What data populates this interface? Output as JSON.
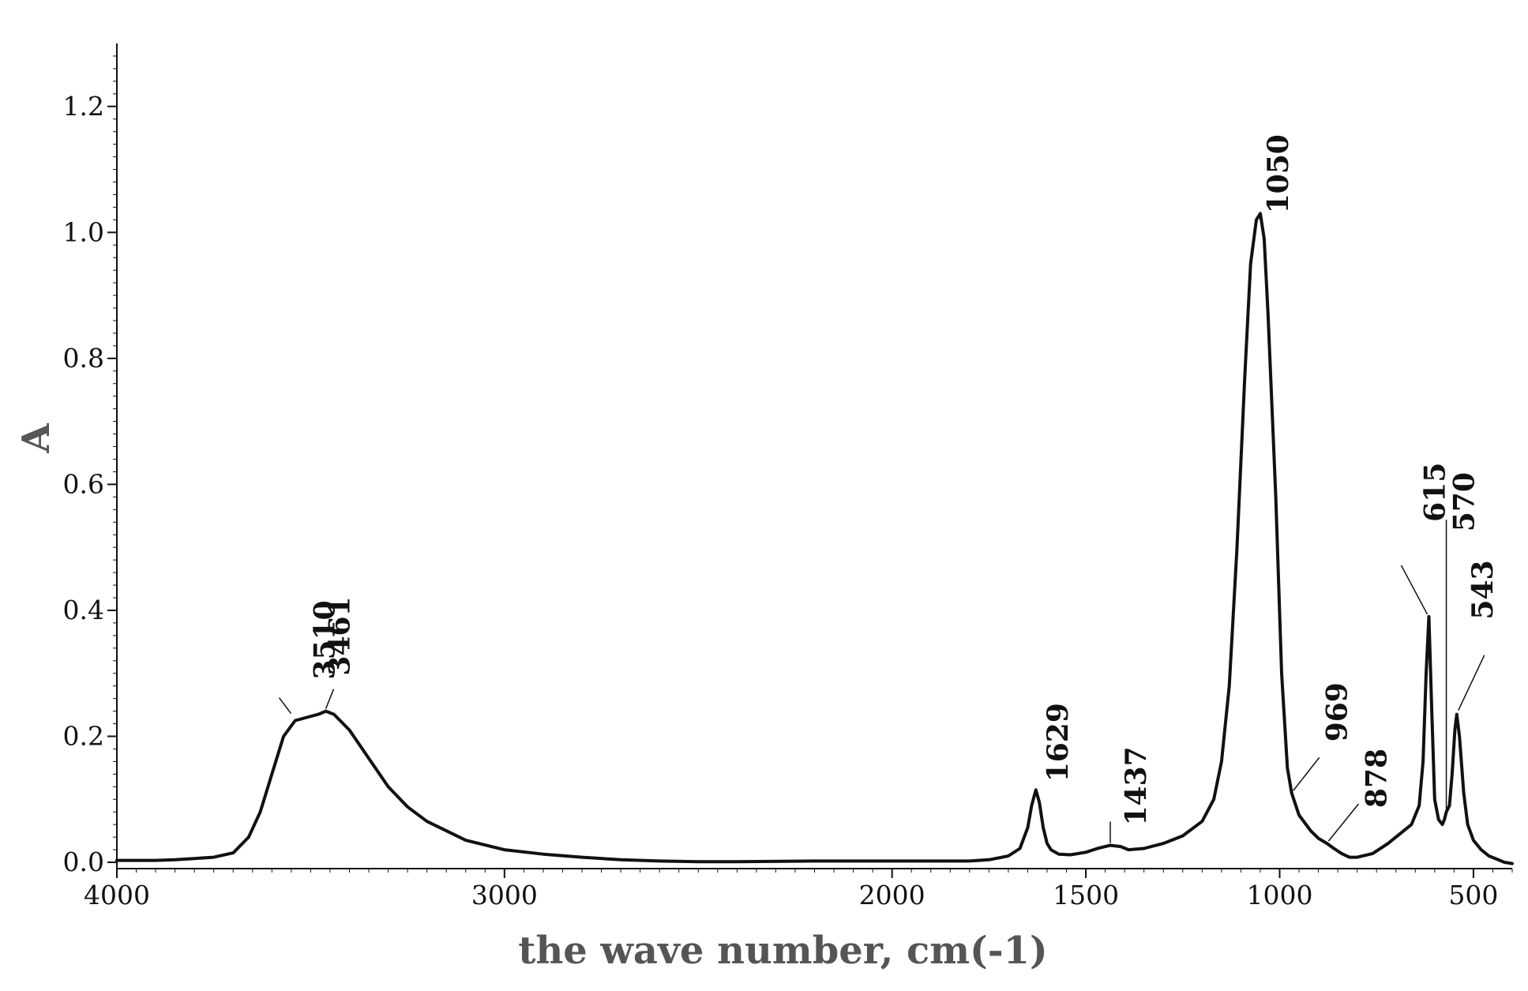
{
  "chart_data": {
    "type": "line",
    "title": "",
    "xlabel": "the wave number, cm(-1)",
    "ylabel": "A",
    "xlim": [
      4000,
      400
    ],
    "ylim": [
      -0.01,
      1.3
    ],
    "x_reversed": true,
    "grid": false,
    "legend": "none",
    "x_ticks": [
      {
        "value": 4000,
        "label": "4000"
      },
      {
        "value": 3000,
        "label": "3000"
      },
      {
        "value": 2000,
        "label": "2000"
      },
      {
        "value": 1500,
        "label": "1500"
      },
      {
        "value": 1000,
        "label": "1000"
      },
      {
        "value": 500,
        "label": "500"
      }
    ],
    "y_ticks": [
      {
        "value": 0.0,
        "label": "0.0"
      },
      {
        "value": 0.2,
        "label": "0.2"
      },
      {
        "value": 0.4,
        "label": "0.4"
      },
      {
        "value": 0.6,
        "label": "0.6"
      },
      {
        "value": 0.8,
        "label": "0.8"
      },
      {
        "value": 1.0,
        "label": "1.0"
      },
      {
        "value": 1.2,
        "label": "1.2"
      }
    ],
    "series": [
      {
        "color": "#111111",
        "points": [
          [
            4000,
            0.003
          ],
          [
            3900,
            0.003
          ],
          [
            3850,
            0.004
          ],
          [
            3800,
            0.006
          ],
          [
            3750,
            0.008
          ],
          [
            3700,
            0.015
          ],
          [
            3660,
            0.04
          ],
          [
            3630,
            0.08
          ],
          [
            3600,
            0.14
          ],
          [
            3570,
            0.2
          ],
          [
            3540,
            0.225
          ],
          [
            3510,
            0.23
          ],
          [
            3480,
            0.235
          ],
          [
            3461,
            0.24
          ],
          [
            3440,
            0.235
          ],
          [
            3400,
            0.21
          ],
          [
            3350,
            0.165
          ],
          [
            3300,
            0.12
          ],
          [
            3250,
            0.088
          ],
          [
            3200,
            0.065
          ],
          [
            3100,
            0.035
          ],
          [
            3000,
            0.02
          ],
          [
            2900,
            0.013
          ],
          [
            2800,
            0.008
          ],
          [
            2700,
            0.004
          ],
          [
            2600,
            0.002
          ],
          [
            2500,
            0.001
          ],
          [
            2400,
            0.001
          ],
          [
            2200,
            0.002
          ],
          [
            2000,
            0.002
          ],
          [
            1800,
            0.002
          ],
          [
            1750,
            0.004
          ],
          [
            1700,
            0.01
          ],
          [
            1670,
            0.022
          ],
          [
            1650,
            0.055
          ],
          [
            1640,
            0.09
          ],
          [
            1629,
            0.115
          ],
          [
            1620,
            0.095
          ],
          [
            1610,
            0.055
          ],
          [
            1600,
            0.03
          ],
          [
            1590,
            0.02
          ],
          [
            1570,
            0.013
          ],
          [
            1540,
            0.012
          ],
          [
            1500,
            0.016
          ],
          [
            1470,
            0.022
          ],
          [
            1437,
            0.027
          ],
          [
            1410,
            0.025
          ],
          [
            1390,
            0.02
          ],
          [
            1350,
            0.022
          ],
          [
            1300,
            0.03
          ],
          [
            1250,
            0.042
          ],
          [
            1200,
            0.065
          ],
          [
            1170,
            0.1
          ],
          [
            1150,
            0.16
          ],
          [
            1130,
            0.28
          ],
          [
            1110,
            0.5
          ],
          [
            1090,
            0.77
          ],
          [
            1075,
            0.95
          ],
          [
            1060,
            1.02
          ],
          [
            1050,
            1.03
          ],
          [
            1040,
            0.99
          ],
          [
            1030,
            0.87
          ],
          [
            1010,
            0.58
          ],
          [
            995,
            0.3
          ],
          [
            980,
            0.15
          ],
          [
            969,
            0.11
          ],
          [
            950,
            0.075
          ],
          [
            920,
            0.05
          ],
          [
            900,
            0.038
          ],
          [
            878,
            0.03
          ],
          [
            860,
            0.022
          ],
          [
            840,
            0.014
          ],
          [
            820,
            0.008
          ],
          [
            800,
            0.008
          ],
          [
            760,
            0.014
          ],
          [
            720,
            0.03
          ],
          [
            690,
            0.045
          ],
          [
            660,
            0.06
          ],
          [
            640,
            0.09
          ],
          [
            630,
            0.16
          ],
          [
            622,
            0.3
          ],
          [
            615,
            0.39
          ],
          [
            608,
            0.25
          ],
          [
            600,
            0.1
          ],
          [
            590,
            0.068
          ],
          [
            580,
            0.06
          ],
          [
            575,
            0.068
          ],
          [
            570,
            0.08
          ],
          [
            562,
            0.09
          ],
          [
            555,
            0.14
          ],
          [
            548,
            0.21
          ],
          [
            543,
            0.235
          ],
          [
            536,
            0.2
          ],
          [
            525,
            0.11
          ],
          [
            515,
            0.06
          ],
          [
            500,
            0.035
          ],
          [
            480,
            0.02
          ],
          [
            460,
            0.01
          ],
          [
            440,
            0.005
          ],
          [
            420,
            0.0
          ],
          [
            400,
            -0.002
          ]
        ]
      }
    ],
    "annotations": [
      {
        "label": "3510",
        "x": 3510,
        "y": 0.23,
        "leader": true
      },
      {
        "label": "3461",
        "x": 3461,
        "y": 0.24,
        "leader": true
      },
      {
        "label": "1629",
        "x": 1629,
        "y": 0.115,
        "leader": false
      },
      {
        "label": "1437",
        "x": 1437,
        "y": 0.027,
        "leader": true
      },
      {
        "label": "1050",
        "x": 1050,
        "y": 1.03,
        "leader": false
      },
      {
        "label": "969",
        "x": 969,
        "y": 0.11,
        "leader": true
      },
      {
        "label": "878",
        "x": 878,
        "y": 0.03,
        "leader": true
      },
      {
        "label": "615",
        "x": 615,
        "y": 0.39,
        "leader": true
      },
      {
        "label": "570",
        "x": 570,
        "y": 0.08,
        "leader": true
      },
      {
        "label": "543",
        "x": 543,
        "y": 0.235,
        "leader": true
      }
    ]
  }
}
